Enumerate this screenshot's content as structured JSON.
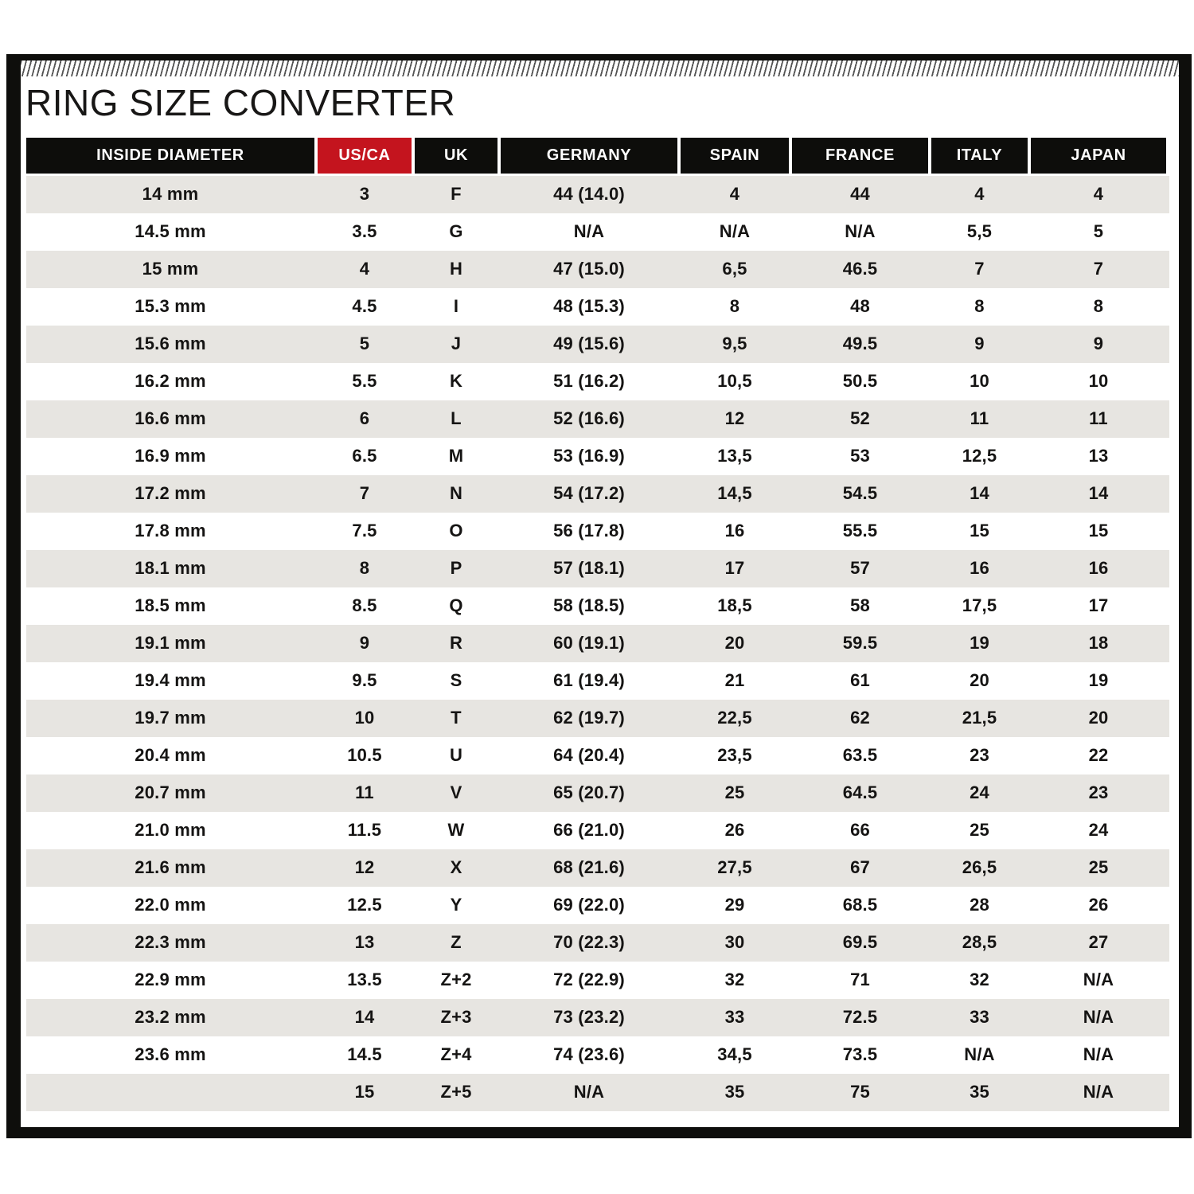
{
  "title": "RING SIZE CONVERTER",
  "colors": {
    "accent_red": "#c4141e",
    "header_black": "#0d0d0b",
    "row_stripe": "#e7e5e1",
    "text": "#151413",
    "frame_border": "#0e0e0c"
  },
  "chart_data": {
    "type": "table",
    "title": "RING SIZE CONVERTER",
    "columns": [
      "INSIDE DIAMETER",
      "US/CA",
      "UK",
      "GERMANY",
      "SPAIN",
      "FRANCE",
      "ITALY",
      "JAPAN"
    ],
    "highlighted_column": "US/CA",
    "rows": [
      [
        "14 mm",
        "3",
        "F",
        "44 (14.0)",
        "4",
        "44",
        "4",
        "4"
      ],
      [
        "14.5 mm",
        "3.5",
        "G",
        "N/A",
        "N/A",
        "N/A",
        "5,5",
        "5"
      ],
      [
        "15 mm",
        "4",
        "H",
        "47 (15.0)",
        "6,5",
        "46.5",
        "7",
        "7"
      ],
      [
        "15.3 mm",
        "4.5",
        "I",
        "48 (15.3)",
        "8",
        "48",
        "8",
        "8"
      ],
      [
        "15.6 mm",
        "5",
        "J",
        "49 (15.6)",
        "9,5",
        "49.5",
        "9",
        "9"
      ],
      [
        "16.2 mm",
        "5.5",
        "K",
        "51 (16.2)",
        "10,5",
        "50.5",
        "10",
        "10"
      ],
      [
        "16.6 mm",
        "6",
        "L",
        "52 (16.6)",
        "12",
        "52",
        "11",
        "11"
      ],
      [
        "16.9 mm",
        "6.5",
        "M",
        "53 (16.9)",
        "13,5",
        "53",
        "12,5",
        "13"
      ],
      [
        "17.2 mm",
        "7",
        "N",
        "54 (17.2)",
        "14,5",
        "54.5",
        "14",
        "14"
      ],
      [
        "17.8 mm",
        "7.5",
        "O",
        "56 (17.8)",
        "16",
        "55.5",
        "15",
        "15"
      ],
      [
        "18.1 mm",
        "8",
        "P",
        "57 (18.1)",
        "17",
        "57",
        "16",
        "16"
      ],
      [
        "18.5 mm",
        "8.5",
        "Q",
        "58 (18.5)",
        "18,5",
        "58",
        "17,5",
        "17"
      ],
      [
        "19.1 mm",
        "9",
        "R",
        "60 (19.1)",
        "20",
        "59.5",
        "19",
        "18"
      ],
      [
        "19.4 mm",
        "9.5",
        "S",
        "61 (19.4)",
        "21",
        "61",
        "20",
        "19"
      ],
      [
        "19.7 mm",
        "10",
        "T",
        "62 (19.7)",
        "22,5",
        "62",
        "21,5",
        "20"
      ],
      [
        "20.4 mm",
        "10.5",
        "U",
        "64 (20.4)",
        "23,5",
        "63.5",
        "23",
        "22"
      ],
      [
        "20.7 mm",
        "11",
        "V",
        "65 (20.7)",
        "25",
        "64.5",
        "24",
        "23"
      ],
      [
        "21.0 mm",
        "11.5",
        "W",
        "66 (21.0)",
        "26",
        "66",
        "25",
        "24"
      ],
      [
        "21.6 mm",
        "12",
        "X",
        "68 (21.6)",
        "27,5",
        "67",
        "26,5",
        "25"
      ],
      [
        "22.0 mm",
        "12.5",
        "Y",
        "69 (22.0)",
        "29",
        "68.5",
        "28",
        "26"
      ],
      [
        "22.3 mm",
        "13",
        "Z",
        "70 (22.3)",
        "30",
        "69.5",
        "28,5",
        "27"
      ],
      [
        "22.9 mm",
        "13.5",
        "Z+2",
        "72 (22.9)",
        "32",
        "71",
        "32",
        "N/A"
      ],
      [
        "23.2 mm",
        "14",
        "Z+3",
        "73 (23.2)",
        "33",
        "72.5",
        "33",
        "N/A"
      ],
      [
        "23.6 mm",
        "14.5",
        "Z+4",
        "74 (23.6)",
        "34,5",
        "73.5",
        "N/A",
        "N/A"
      ],
      [
        "",
        "15",
        "Z+5",
        "N/A",
        "35",
        "75",
        "35",
        "N/A"
      ]
    ]
  }
}
